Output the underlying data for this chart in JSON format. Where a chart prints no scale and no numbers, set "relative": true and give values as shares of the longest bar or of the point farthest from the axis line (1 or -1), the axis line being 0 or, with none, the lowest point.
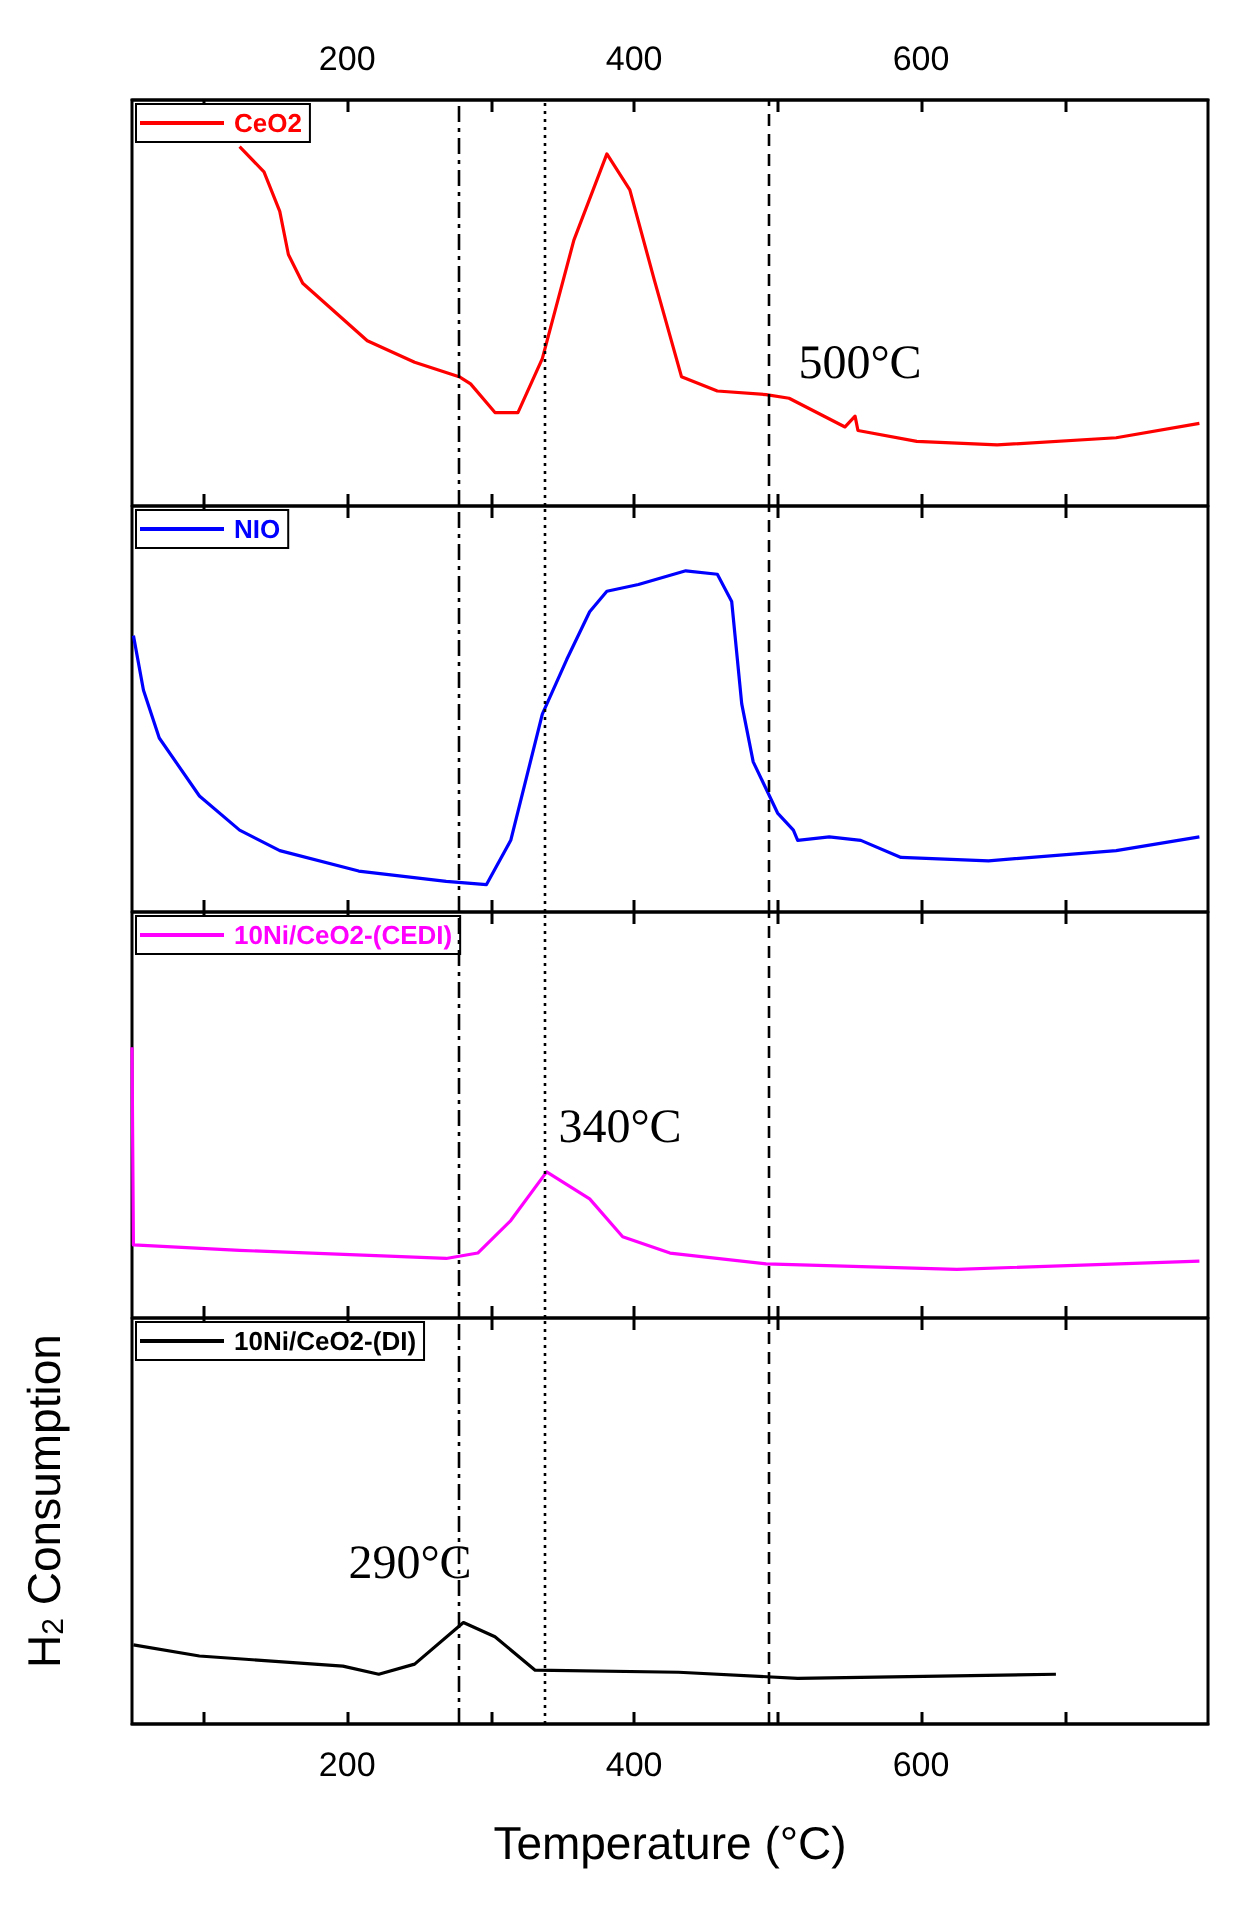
{
  "chart_data": [
    {
      "type": "line",
      "relative": true,
      "legend": "top left",
      "tick_labels": false,
      "marker": "none",
      "xlim": [
        50,
        800
      ],
      "xticks": [
        100,
        200,
        300,
        400,
        500,
        600,
        700
      ],
      "x2lim": [
        50,
        800
      ],
      "x2ticks": [
        {
          "value": 100,
          "label": null
        },
        200,
        {
          "value": 300,
          "label": null
        },
        400,
        {
          "value": 500,
          "label": null
        },
        600,
        {
          "value": 700,
          "label": null
        }
      ],
      "series": [
        {
          "name": "CeO2",
          "color": "#ff0000",
          "x": [
            125,
            142,
            153,
            159,
            169,
            214,
            247,
            278,
            286,
            303,
            319,
            336,
            358,
            381,
            397,
            414,
            433,
            458,
            492,
            508,
            547,
            554,
            556,
            597,
            653,
            736,
            794
          ],
          "values": [
            1,
            0.93,
            0.82,
            0.7,
            0.62,
            0.46,
            0.4,
            0.36,
            0.34,
            0.26,
            0.26,
            0.41,
            0.74,
            0.98,
            0.88,
            0.63,
            0.36,
            0.32,
            0.31,
            0.3,
            0.22,
            0.25,
            0.21,
            0.18,
            0.17,
            0.19,
            0.23
          ]
        }
      ],
      "ref_lines": [
        {
          "axis": "x",
          "value": 277,
          "color": "#000000",
          "line_style": "dashdot"
        },
        {
          "axis": "x",
          "value": 337,
          "color": "#000000",
          "line_style": "dotted"
        },
        {
          "axis": "x",
          "value": 493,
          "color": "#000000",
          "line_style": "dashed"
        }
      ],
      "annotations": [
        "500°C"
      ]
    },
    {
      "type": "line",
      "relative": true,
      "legend": "top left",
      "tick_labels": false,
      "marker": "none",
      "xlim": [
        50,
        800
      ],
      "xticks": [
        100,
        200,
        300,
        400,
        500,
        600,
        700
      ],
      "series": [
        {
          "name": "NIO",
          "color": "#0000ff",
          "x": [
            51,
            58,
            69,
            97,
            125,
            153,
            208,
            269,
            297,
            314,
            336,
            353,
            369,
            381,
            403,
            436,
            458,
            468,
            475,
            483,
            500,
            511,
            514,
            536,
            558,
            586,
            647,
            736,
            794
          ],
          "values": [
            0.81,
            0.65,
            0.51,
            0.34,
            0.24,
            0.18,
            0.12,
            0.09,
            0.08,
            0.21,
            0.58,
            0.74,
            0.88,
            0.94,
            0.96,
            1,
            0.99,
            0.91,
            0.61,
            0.44,
            0.29,
            0.24,
            0.21,
            0.22,
            0.21,
            0.16,
            0.15,
            0.18,
            0.22
          ]
        }
      ],
      "ref_lines": [
        {
          "axis": "x",
          "value": 277,
          "color": "#000000",
          "line_style": "dashdot"
        },
        {
          "axis": "x",
          "value": 337,
          "color": "#000000",
          "line_style": "dotted"
        },
        {
          "axis": "x",
          "value": 493,
          "color": "#000000",
          "line_style": "dashed"
        }
      ]
    },
    {
      "type": "line",
      "relative": true,
      "legend": "top left",
      "tick_labels": false,
      "marker": "none",
      "xlim": [
        50,
        800
      ],
      "xticks": [
        100,
        200,
        300,
        400,
        500,
        600,
        700
      ],
      "series": [
        {
          "name": "10Ni/CeO2-(CEDI)",
          "color": "#ff00ff",
          "x": [
            50,
            51,
            125,
            269,
            291,
            314,
            339,
            369,
            392,
            425,
            492,
            625,
            794
          ],
          "values": [
            1,
            0.27,
            0.25,
            0.22,
            0.24,
            0.36,
            0.54,
            0.44,
            0.3,
            0.24,
            0.2,
            0.18,
            0.21
          ]
        }
      ],
      "ref_lines": [
        {
          "axis": "x",
          "value": 277,
          "color": "#000000",
          "line_style": "dashdot"
        },
        {
          "axis": "x",
          "value": 337,
          "color": "#000000",
          "line_style": "dotted"
        },
        {
          "axis": "x",
          "value": 493,
          "color": "#000000",
          "line_style": "dashed"
        }
      ],
      "annotations": [
        "340°C"
      ]
    },
    {
      "type": "line",
      "relative": true,
      "legend": "top left",
      "tick_labels": "x",
      "marker": "none",
      "xlabel": "Temperature (°C)",
      "ylabel": "H$_{2}$ Consumption",
      "xlim": [
        50,
        800
      ],
      "xticks": [
        {
          "value": 100,
          "label": null
        },
        200,
        {
          "value": 300,
          "label": null
        },
        400,
        {
          "value": 500,
          "label": null
        },
        600,
        {
          "value": 700,
          "label": null
        }
      ],
      "series": [
        {
          "name": "10Ni/CeO2-(DI)",
          "color": "#000000",
          "x": [
            51,
            97,
            197,
            222,
            247,
            281,
            303,
            331,
            431,
            514,
            694
          ],
          "values": [
            0.78,
            0.67,
            0.57,
            0.49,
            0.59,
            1,
            0.86,
            0.53,
            0.51,
            0.45,
            0.49
          ]
        }
      ],
      "ref_lines": [
        {
          "axis": "x",
          "value": 277,
          "color": "#000000",
          "line_style": "dashdot"
        },
        {
          "axis": "x",
          "value": 337,
          "color": "#000000",
          "line_style": "dotted"
        },
        {
          "axis": "x",
          "value": 493,
          "color": "#000000",
          "line_style": "dashed"
        }
      ],
      "annotations": [
        "290°C"
      ]
    }
  ]
}
